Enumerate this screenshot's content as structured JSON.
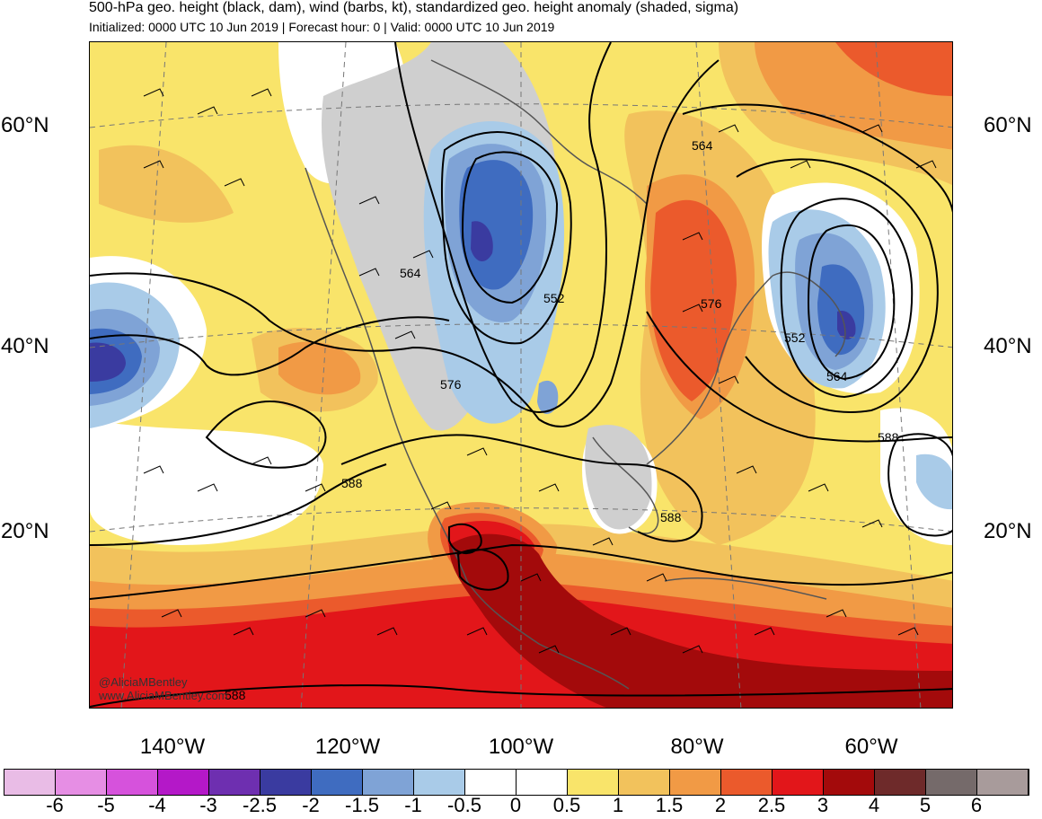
{
  "header": {
    "title": "500-hPa geo. height (black, dam), wind (barbs, kt), standardized geo. height anomaly (shaded, sigma)",
    "subtitle": "Initialized: 0000 UTC 10 Jun 2019 | Forecast hour: 0 | Valid: 0000 UTC 10 Jun 2019"
  },
  "map": {
    "lat_labels": [
      "60°N",
      "40°N",
      "20°N"
    ],
    "lon_labels": [
      "140°W",
      "120°W",
      "100°W",
      "80°W",
      "60°W"
    ],
    "contour_labels": [
      "564",
      "552",
      "576",
      "576",
      "564",
      "552",
      "588",
      "588",
      "588",
      "564",
      "588"
    ],
    "credit": [
      "@AliciaMBentley",
      "www.AliciaMBentley.com"
    ]
  },
  "colorbar": {
    "labels": [
      "-6",
      "-5",
      "-4",
      "-3",
      "-2.5",
      "-2",
      "-1.5",
      "-1",
      "-0.5",
      "0",
      "0.5",
      "1",
      "1.5",
      "2",
      "2.5",
      "3",
      "4",
      "5",
      "6"
    ],
    "colors": [
      "#e9bce6",
      "#e68ee4",
      "#d652dc",
      "#b418c8",
      "#6e2fb0",
      "#3a3ba0",
      "#3f6cc0",
      "#7fa3d6",
      "#a9cbe8",
      "#ffffff",
      "#ffffff",
      "#f9e46a",
      "#f2c25c",
      "#f19a45",
      "#eb5a2c",
      "#e2161a",
      "#a30a0b",
      "#6e2a2a",
      "#756a6a",
      "#a89b9b"
    ]
  }
}
